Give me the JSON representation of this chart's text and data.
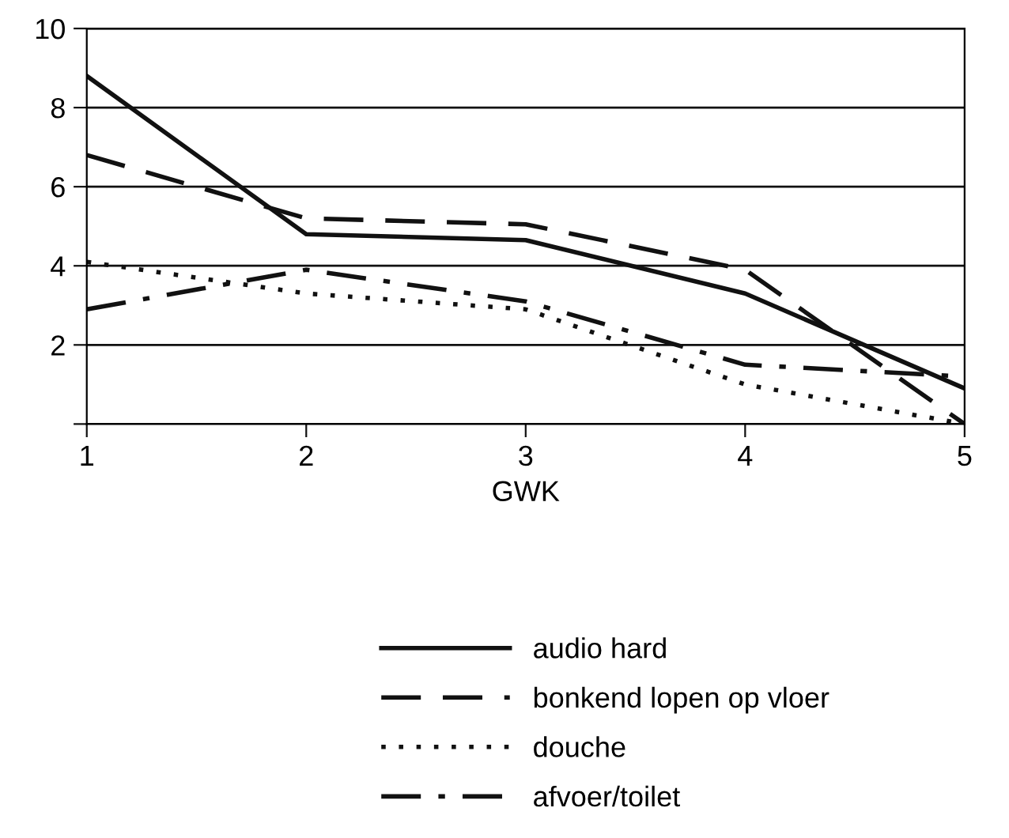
{
  "chart_data": {
    "type": "line",
    "xlabel": "GWK",
    "x": [
      1,
      2,
      3,
      4,
      5
    ],
    "xlim": [
      1,
      5
    ],
    "xticks": [
      1,
      2,
      3,
      4,
      5
    ],
    "ylim": [
      0,
      10
    ],
    "yticks": [
      {
        "value": 0,
        "label": null
      },
      2,
      4,
      6,
      8,
      10
    ],
    "grid": "y",
    "legend": "bottom",
    "marker": "none",
    "series": [
      {
        "name": "audio hard",
        "color": "#111111",
        "line_style": "solid",
        "values": [
          8.8,
          4.8,
          4.65,
          3.3,
          0.9
        ]
      },
      {
        "name": "bonkend lopen op vloer",
        "color": "#111111",
        "line_style": "dashed",
        "values": [
          6.8,
          5.2,
          5.05,
          3.9,
          0
        ]
      },
      {
        "name": "douche",
        "color": "#111111",
        "line_style": "dotted",
        "values": [
          4.1,
          3.3,
          2.9,
          1.0,
          0
        ]
      },
      {
        "name": "afvoer/toilet",
        "color": "#111111",
        "line_style": "dashdot",
        "values": [
          2.9,
          3.9,
          3.1,
          1.5,
          1.2
        ]
      }
    ]
  }
}
